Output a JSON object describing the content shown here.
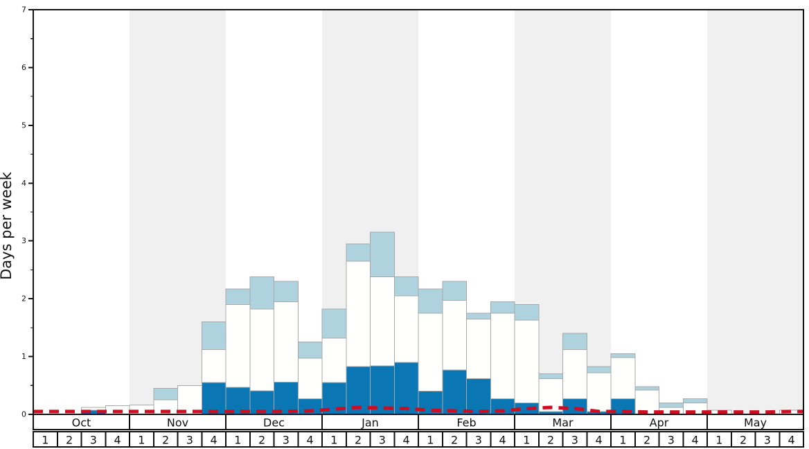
{
  "chart_data": {
    "type": "bar",
    "subtype": "stacked-bars-with-dashed-average-line",
    "ylabel": "Days per week",
    "ylim": [
      0,
      7
    ],
    "yticks": [
      "0",
      "1",
      "2",
      "3",
      "4",
      "5",
      "6",
      "7"
    ],
    "minor_tick_step": 0.5,
    "grid": false,
    "legend": "none visible",
    "months": [
      {
        "label": "Oct",
        "shaded": false,
        "weeks": [
          "1",
          "2",
          "3",
          "4"
        ]
      },
      {
        "label": "Nov",
        "shaded": true,
        "weeks": [
          "1",
          "2",
          "3",
          "4"
        ]
      },
      {
        "label": "Dec",
        "shaded": false,
        "weeks": [
          "1",
          "2",
          "3",
          "4"
        ]
      },
      {
        "label": "Jan",
        "shaded": true,
        "weeks": [
          "1",
          "2",
          "3",
          "4"
        ]
      },
      {
        "label": "Feb",
        "shaded": false,
        "weeks": [
          "1",
          "2",
          "3",
          "4"
        ]
      },
      {
        "label": "Mar",
        "shaded": true,
        "weeks": [
          "1",
          "2",
          "3",
          "4"
        ]
      },
      {
        "label": "Apr",
        "shaded": false,
        "weeks": [
          "1",
          "2",
          "3",
          "4"
        ]
      },
      {
        "label": "May",
        "shaded": true,
        "weeks": [
          "1",
          "2",
          "3",
          "4"
        ]
      }
    ],
    "stack_order_bottom_to_top": [
      "dark_blue",
      "white",
      "light_blue"
    ],
    "dark_blue_tops": [
      0,
      0,
      0.07,
      0,
      0,
      0,
      0,
      0.55,
      0.47,
      0.41,
      0.56,
      0.27,
      0.55,
      0.83,
      0.84,
      0.9,
      0.4,
      0.77,
      0.62,
      0.27,
      0.2,
      0.05,
      0.27,
      0.05,
      0.27,
      0,
      0,
      0,
      0,
      0,
      0,
      0
    ],
    "white_tops": [
      0,
      0,
      0.12,
      0.15,
      0.16,
      0.25,
      0.5,
      1.12,
      1.9,
      1.82,
      1.95,
      0.97,
      1.32,
      2.65,
      2.38,
      2.05,
      1.75,
      1.97,
      1.65,
      1.75,
      1.63,
      0.62,
      1.12,
      0.72,
      0.98,
      0.42,
      0.12,
      0.2,
      0.07,
      0,
      0,
      0.07
    ],
    "light_blue_tops": [
      0,
      0,
      0.12,
      0.15,
      0.16,
      0.45,
      0.5,
      1.6,
      2.17,
      2.38,
      2.3,
      1.25,
      1.82,
      2.95,
      3.15,
      2.38,
      2.17,
      2.3,
      1.75,
      1.95,
      1.9,
      0.7,
      1.4,
      0.83,
      1.05,
      0.48,
      0.2,
      0.27,
      0.07,
      0,
      0,
      0.07
    ],
    "red_dashed_line": [
      0.05,
      0.05,
      0.05,
      0.05,
      0.05,
      0.05,
      0.05,
      0.05,
      0.05,
      0.05,
      0.05,
      0.06,
      0.09,
      0.12,
      0.11,
      0.1,
      0.07,
      0.06,
      0.05,
      0.06,
      0.1,
      0.12,
      0.1,
      0.05,
      0.05,
      0.04,
      0.04,
      0.04,
      0.04,
      0.04,
      0.04,
      0.05
    ],
    "colors": {
      "dark_blue": "#0b76b4",
      "light_blue": "#aed3df",
      "bar_white": "#fffffe",
      "bar_border": "#a8a8a8",
      "band_gray": "#f0f0f0",
      "red_line": "#cb0e22",
      "axis_black": "#111111",
      "ylabel_gray": "#3f3f3f",
      "background": "#ffffff"
    }
  }
}
